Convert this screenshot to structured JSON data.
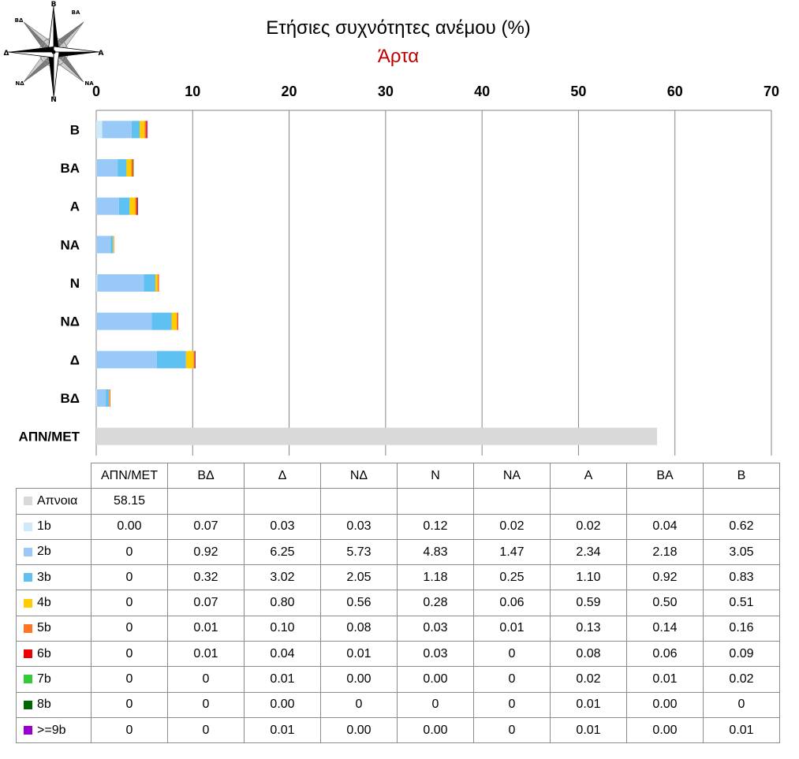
{
  "colors": {
    "calm": "#d9d9d9",
    "b1": "#cfe9fb",
    "b2": "#99c9f7",
    "b3": "#5fc0f2",
    "b4": "#ffcc00",
    "b5": "#ff7520",
    "b6": "#ee0000",
    "b7": "#33cc33",
    "b8": "#006600",
    "b9": "#9900cc",
    "title": "#000000",
    "subtitle": "#c00000"
  },
  "compass": {
    "labels": [
      "Β",
      "ΒΑ",
      "Α",
      "ΝΑ",
      "Ν",
      "ΝΔ",
      "Δ",
      "ΒΔ"
    ],
    "icon": "compass-rose-icon"
  },
  "chart_data": {
    "type": "bar",
    "orientation": "horizontal",
    "stacked": true,
    "title": "Ετήσιες συχνότητες ανέμου (%)",
    "subtitle": "Άρτα",
    "xlim": [
      0,
      70
    ],
    "xticks": [
      0,
      10,
      20,
      30,
      40,
      50,
      60,
      70
    ],
    "grid": true,
    "categories": [
      "ΑΠΝ/ΜΕΤ",
      "ΒΔ",
      "Δ",
      "ΝΔ",
      "Ν",
      "ΝΑ",
      "Α",
      "ΒΑ",
      "Β"
    ],
    "series": [
      {
        "name": "Απνοια",
        "color": "#d9d9d9",
        "values": [
          58.15,
          null,
          null,
          null,
          null,
          null,
          null,
          null,
          null
        ],
        "labels": [
          "58.15",
          "",
          "",
          "",
          "",
          "",
          "",
          "",
          ""
        ]
      },
      {
        "name": "1b",
        "color": "#cfe9fb",
        "values": [
          0.0,
          0.07,
          0.03,
          0.03,
          0.12,
          0.02,
          0.02,
          0.04,
          0.62
        ],
        "labels": [
          "0.00",
          "0.07",
          "0.03",
          "0.03",
          "0.12",
          "0.02",
          "0.02",
          "0.04",
          "0.62"
        ]
      },
      {
        "name": "2b",
        "color": "#99c9f7",
        "values": [
          0,
          0.92,
          6.25,
          5.73,
          4.83,
          1.47,
          2.34,
          2.18,
          3.05
        ],
        "labels": [
          "0",
          "0.92",
          "6.25",
          "5.73",
          "4.83",
          "1.47",
          "2.34",
          "2.18",
          "3.05"
        ]
      },
      {
        "name": "3b",
        "color": "#5fc0f2",
        "values": [
          0,
          0.32,
          3.02,
          2.05,
          1.18,
          0.25,
          1.1,
          0.92,
          0.83
        ],
        "labels": [
          "0",
          "0.32",
          "3.02",
          "2.05",
          "1.18",
          "0.25",
          "1.10",
          "0.92",
          "0.83"
        ]
      },
      {
        "name": "4b",
        "color": "#ffcc00",
        "values": [
          0,
          0.07,
          0.8,
          0.56,
          0.28,
          0.06,
          0.59,
          0.5,
          0.51
        ],
        "labels": [
          "0",
          "0.07",
          "0.80",
          "0.56",
          "0.28",
          "0.06",
          "0.59",
          "0.50",
          "0.51"
        ]
      },
      {
        "name": "5b",
        "color": "#ff7520",
        "values": [
          0,
          0.01,
          0.1,
          0.08,
          0.03,
          0.01,
          0.13,
          0.14,
          0.16
        ],
        "labels": [
          "0",
          "0.01",
          "0.10",
          "0.08",
          "0.03",
          "0.01",
          "0.13",
          "0.14",
          "0.16"
        ]
      },
      {
        "name": "6b",
        "color": "#ee0000",
        "values": [
          0,
          0.01,
          0.04,
          0.01,
          0.03,
          0,
          0.08,
          0.06,
          0.09
        ],
        "labels": [
          "0",
          "0.01",
          "0.04",
          "0.01",
          "0.03",
          "0",
          "0.08",
          "0.06",
          "0.09"
        ]
      },
      {
        "name": "7b",
        "color": "#33cc33",
        "values": [
          0,
          0,
          0.01,
          0.0,
          0.0,
          0,
          0.02,
          0.01,
          0.02
        ],
        "labels": [
          "0",
          "0",
          "0.01",
          "0.00",
          "0.00",
          "0",
          "0.02",
          "0.01",
          "0.02"
        ]
      },
      {
        "name": "8b",
        "color": "#006600",
        "values": [
          0,
          0,
          0.0,
          0,
          0,
          0,
          0.01,
          0.0,
          0
        ],
        "labels": [
          "0",
          "0",
          "0.00",
          "0",
          "0",
          "0",
          "0.01",
          "0.00",
          "0"
        ]
      },
      {
        "name": ">=9b",
        "color": "#9900cc",
        "values": [
          0,
          0,
          0.01,
          0.0,
          0.0,
          0,
          0.01,
          0.0,
          0.01
        ],
        "labels": [
          "0",
          "0",
          "0.01",
          "0.00",
          "0.00",
          "0",
          "0.01",
          "0.00",
          "0.01"
        ]
      }
    ]
  }
}
